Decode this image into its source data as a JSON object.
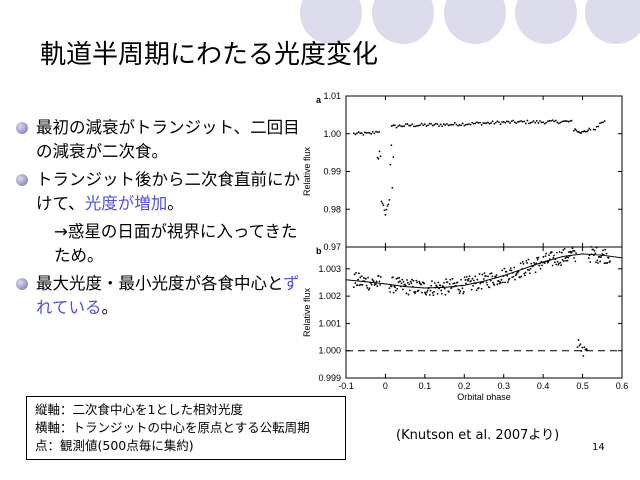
{
  "slide": {
    "title": "軌道半周期にわたる光度変化",
    "bullets": [
      {
        "text": "最初の減衰がトランジット、二回目の減衰が二次食。"
      },
      {
        "text_a": "トランジット後から二次食直前にかけて、",
        "text_hl": "光度が増加",
        "text_b": "。"
      },
      {
        "text": "→惑星の日面が視界に入ってきたため。"
      },
      {
        "text_a": "最大光度・最小光度が各食中心と",
        "text_hl": "ずれている",
        "text_b": "。"
      }
    ],
    "notes": [
      "縦軸：二次食中心を1とした相対光度",
      "横軸：トランジットの中心を原点とする公転周期",
      "点：観測値(500点毎に集約)"
    ],
    "source": "(Knutson et al. 2007より)",
    "page_number": "14",
    "colors": {
      "accent_text": "#5050dc",
      "deco_circle": "#d8d8ea",
      "bullet": "#8c8cc0"
    }
  },
  "chart_data": [
    {
      "type": "scatter",
      "panel_label": "a",
      "xlabel": "",
      "ylabel": "Relative flux",
      "xlim": [
        -0.1,
        0.6
      ],
      "ylim": [
        0.97,
        1.01
      ],
      "yticks": [
        "1.01",
        "1.00",
        "0.99",
        "0.98",
        "0.97"
      ],
      "series": [
        {
          "x": [
            -0.04,
            0.02,
            0.05,
            0.1,
            0.15,
            0.2,
            0.25,
            0.3,
            0.35,
            0.4,
            0.45,
            0.47,
            0.52,
            0.55
          ],
          "y": [
            1.0,
            1.0019,
            1.0022,
            1.0023,
            1.0024,
            1.0026,
            1.0028,
            1.003,
            1.0031,
            1.0031,
            1.0032,
            1.0032,
            1.0002,
            1.0032
          ]
        }
      ],
      "transit": {
        "x": [
          -0.01,
          0.0,
          0.01
        ],
        "y": [
          0.9825,
          0.9785,
          0.9825
        ]
      },
      "secondary_eclipse": {
        "x": [
          0.48,
          0.5,
          0.52
        ],
        "y": [
          1.0012,
          1.0003,
          1.0012
        ]
      }
    },
    {
      "type": "scatter",
      "panel_label": "b",
      "xlabel": "Orbital phase",
      "ylabel": "Relative flux",
      "xlim": [
        -0.1,
        0.6
      ],
      "ylim": [
        0.999,
        1.0038
      ],
      "xticks": [
        "-0.1",
        "0",
        "0.1",
        "0.2",
        "0.3",
        "0.4",
        "0.5",
        "0.6"
      ],
      "yticks": [
        "1.003",
        "1.002",
        "1.001",
        "1.000",
        "0.999"
      ],
      "series": [
        {
          "x": [
            -0.1,
            0.0,
            0.05,
            0.1,
            0.15,
            0.2,
            0.25,
            0.3,
            0.35,
            0.4,
            0.45,
            0.5,
            0.55
          ],
          "y": [
            1.0026,
            1.00245,
            1.00235,
            1.0023,
            1.00232,
            1.0024,
            1.00255,
            1.00275,
            1.003,
            1.00325,
            1.00345,
            1.00355,
            1.0035
          ]
        }
      ],
      "model_line": {
        "x": [
          -0.1,
          0.0,
          0.05,
          0.1,
          0.15,
          0.2,
          0.25,
          0.3,
          0.35,
          0.4,
          0.45,
          0.5,
          0.55,
          0.6
        ],
        "y": [
          1.0026,
          1.00245,
          1.00235,
          1.0023,
          1.00232,
          1.0024,
          1.00255,
          1.00275,
          1.003,
          1.00325,
          1.00345,
          1.00355,
          1.0035,
          1.0034
        ]
      },
      "secondary_eclipse": {
        "x": [
          0.49,
          0.5,
          0.51
        ],
        "y": [
          1.0002,
          0.99995,
          1.0001
        ]
      },
      "reference_line": 1.0
    }
  ]
}
